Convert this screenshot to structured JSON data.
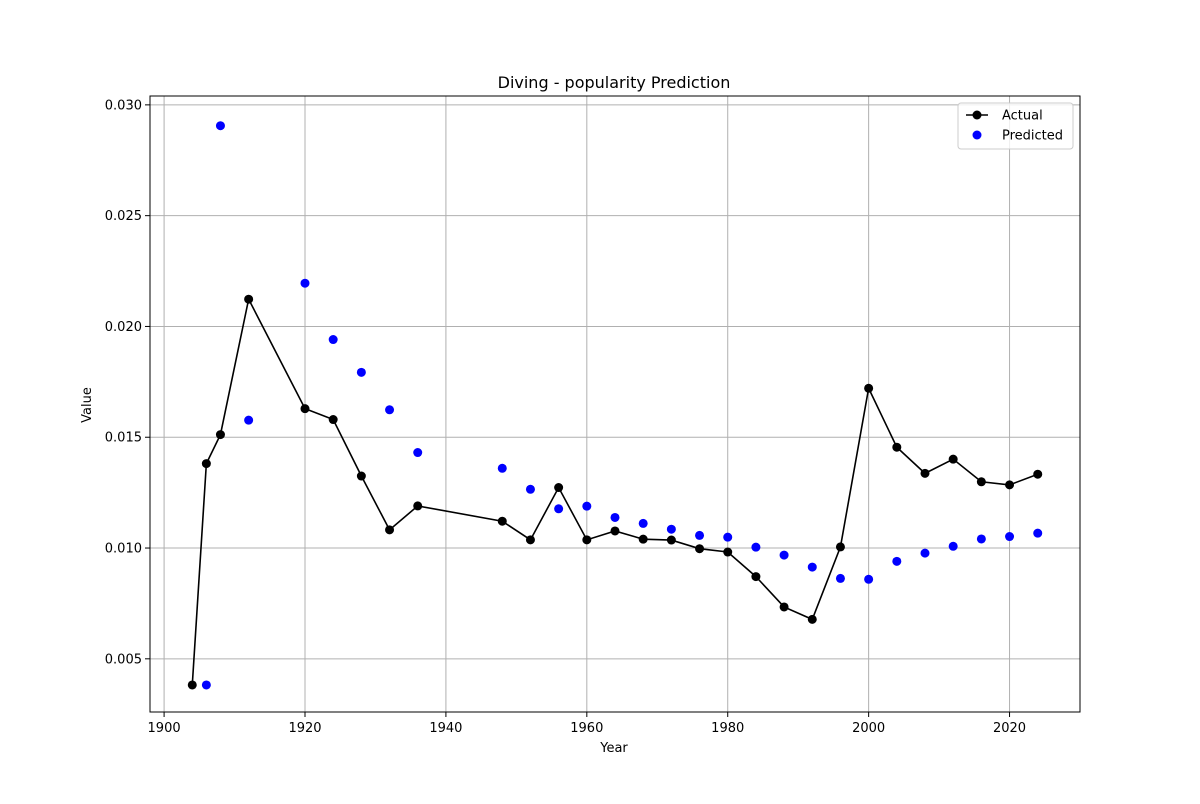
{
  "chart_data": {
    "type": "scatter",
    "title": "Diving - popularity Prediction",
    "xlabel": "Year",
    "ylabel": "Value",
    "xlim": [
      1898,
      2030
    ],
    "ylim": [
      0.0026,
      0.0304
    ],
    "grid": true,
    "legend_position": "top-right",
    "x_ticks": [
      1900,
      1920,
      1940,
      1960,
      1980,
      2000,
      2020
    ],
    "x_tick_labels": [
      "1900",
      "1920",
      "1940",
      "1960",
      "1980",
      "2000",
      "2020"
    ],
    "y_ticks": [
      0.005,
      0.01,
      0.015,
      0.02,
      0.025,
      0.03
    ],
    "y_tick_labels": [
      "0.005",
      "0.010",
      "0.015",
      "0.020",
      "0.025",
      "0.030"
    ],
    "series": [
      {
        "name": "Actual",
        "style": "line-marker",
        "color": "#000000",
        "x": [
          1904,
          1906,
          1908,
          1912,
          1920,
          1924,
          1928,
          1932,
          1936,
          1948,
          1952,
          1956,
          1960,
          1964,
          1968,
          1972,
          1976,
          1980,
          1984,
          1988,
          1992,
          1996,
          2000,
          2004,
          2008,
          2012,
          2016,
          2020,
          2024
        ],
        "y": [
          0.00382,
          0.01381,
          0.01512,
          0.02123,
          0.01629,
          0.0158,
          0.01325,
          0.01082,
          0.0119,
          0.01121,
          0.01037,
          0.01273,
          0.01037,
          0.01077,
          0.0104,
          0.01036,
          0.00997,
          0.00982,
          0.00871,
          0.00734,
          0.00678,
          0.01005,
          0.01721,
          0.01455,
          0.01337,
          0.01401,
          0.01299,
          0.01285,
          0.01333
        ]
      },
      {
        "name": "Predicted",
        "style": "marker",
        "color": "#0000ff",
        "x": [
          1906,
          1908,
          1912,
          1920,
          1924,
          1928,
          1932,
          1936,
          1948,
          1952,
          1956,
          1960,
          1964,
          1968,
          1972,
          1976,
          1980,
          1984,
          1988,
          1992,
          1996,
          2000,
          2004,
          2008,
          2012,
          2016,
          2020,
          2024
        ],
        "y": [
          0.00382,
          0.02906,
          0.01577,
          0.02195,
          0.01941,
          0.01793,
          0.01624,
          0.01431,
          0.0136,
          0.01265,
          0.01177,
          0.01189,
          0.01138,
          0.01111,
          0.01085,
          0.01057,
          0.01049,
          0.01004,
          0.00968,
          0.00914,
          0.00863,
          0.00859,
          0.0094,
          0.00977,
          0.01008,
          0.01041,
          0.01052,
          0.01067
        ]
      }
    ]
  }
}
